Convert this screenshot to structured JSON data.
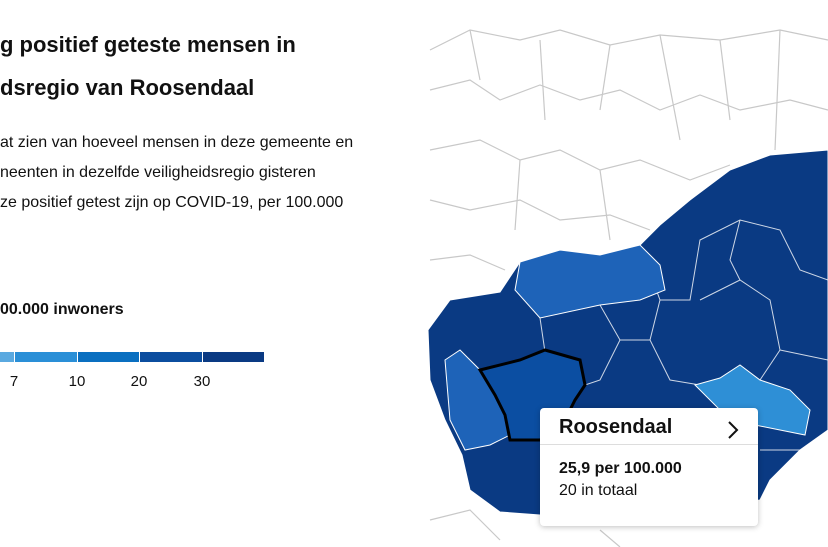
{
  "header": {
    "title_lines": [
      "g positief geteste mensen in",
      "dsregio van Roosendaal"
    ]
  },
  "description": {
    "lines": [
      "at zien van hoeveel mensen in deze gemeente en",
      "neenten in dezelfde veiligheidsregio gisteren",
      "ze positief getest zijn op COVID-19, per 100.000"
    ]
  },
  "legend": {
    "title": "00.000 inwoners",
    "ticks": [
      7,
      10,
      20,
      30
    ],
    "colors": [
      "#5aa9e0",
      "#2a8fd7",
      "#0a6fc0",
      "#0b4d9f",
      "#0a3a83"
    ]
  },
  "tooltip": {
    "name": "Roosendaal",
    "rate": "25,9 per 100.000",
    "total": "20 in totaal"
  }
}
